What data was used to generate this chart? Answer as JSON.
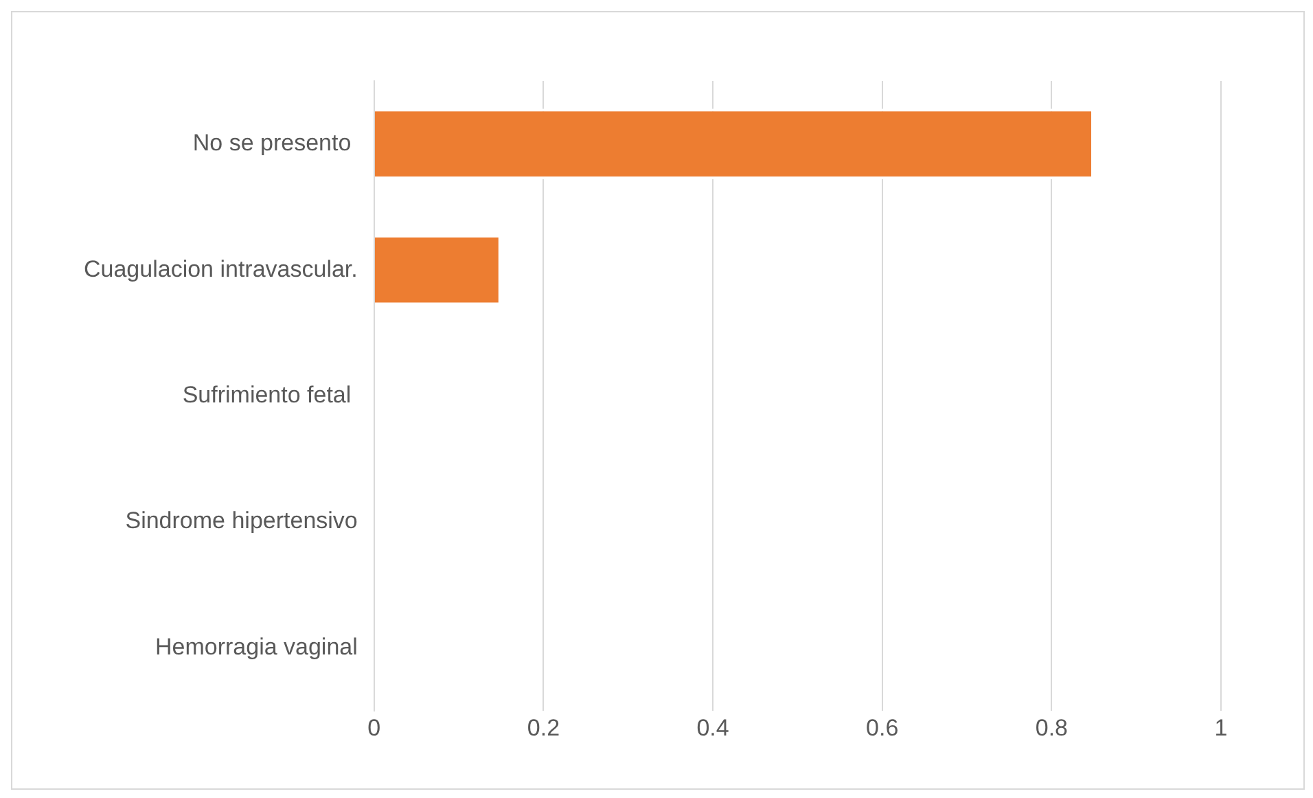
{
  "chart_data": {
    "type": "bar",
    "orientation": "horizontal",
    "categories": [
      "No se presento ",
      "Cuagulacion intravascular.",
      "Sufrimiento fetal ",
      "Sindrome hipertensivo",
      "Hemorragia vaginal"
    ],
    "values": [
      0.85,
      0.15,
      0,
      0,
      0
    ],
    "color": "#ed7d31",
    "xlim": [
      0,
      1
    ],
    "xticks": [
      0,
      0.2,
      0.4,
      0.6,
      0.8,
      1
    ],
    "grid": "x"
  }
}
